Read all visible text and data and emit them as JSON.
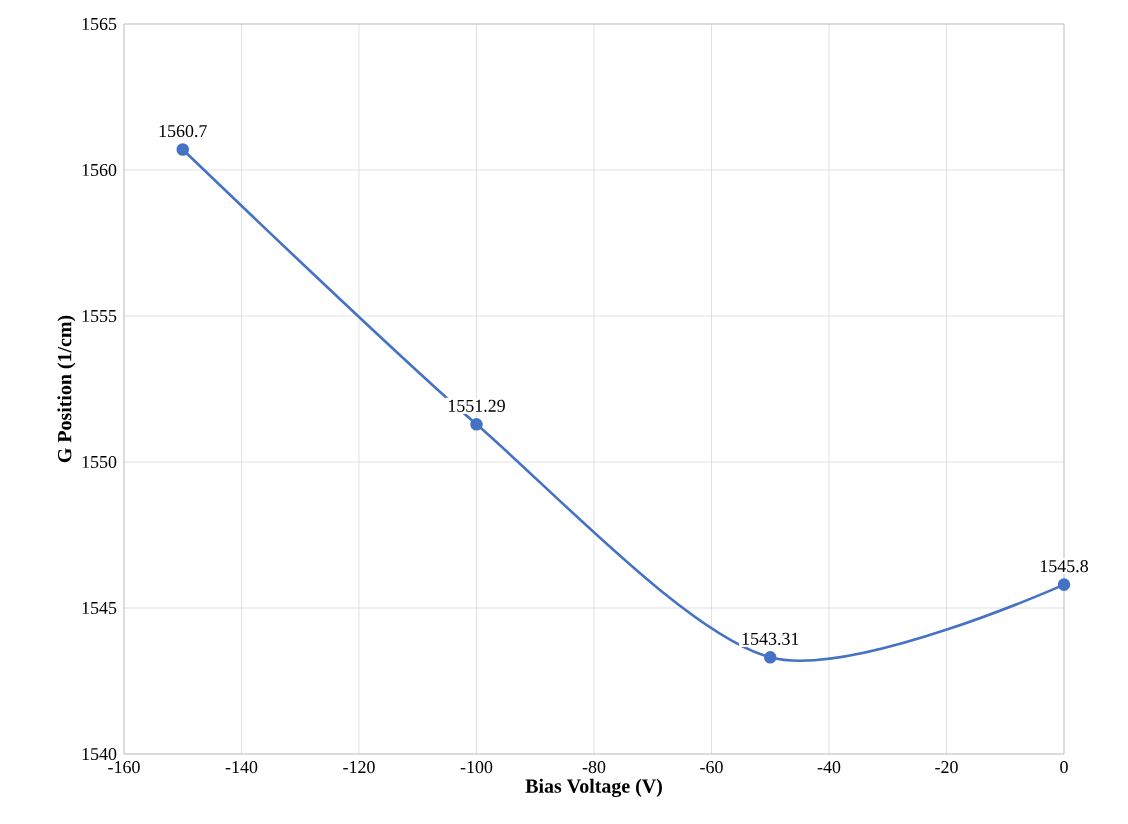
{
  "chart_data": {
    "type": "line",
    "xlabel": "Bias Voltage (V)",
    "ylabel": "G Position (1/cm)",
    "x": [
      -150,
      -100,
      -50,
      0
    ],
    "series": [
      {
        "color": "#4472c4",
        "values": [
          1560.7,
          1551.29,
          1543.31,
          1545.8
        ]
      }
    ],
    "xlim": [
      -160,
      0
    ],
    "xticks": [
      -160,
      -140,
      -120,
      -100,
      -80,
      -60,
      -40,
      -20,
      0
    ],
    "ylim": [
      1540,
      1565
    ],
    "yticks": [
      1540,
      1545,
      1550,
      1555,
      1560,
      1565
    ],
    "grid": true,
    "marker": "circle",
    "line_style": "solid",
    "data_labels": true
  }
}
